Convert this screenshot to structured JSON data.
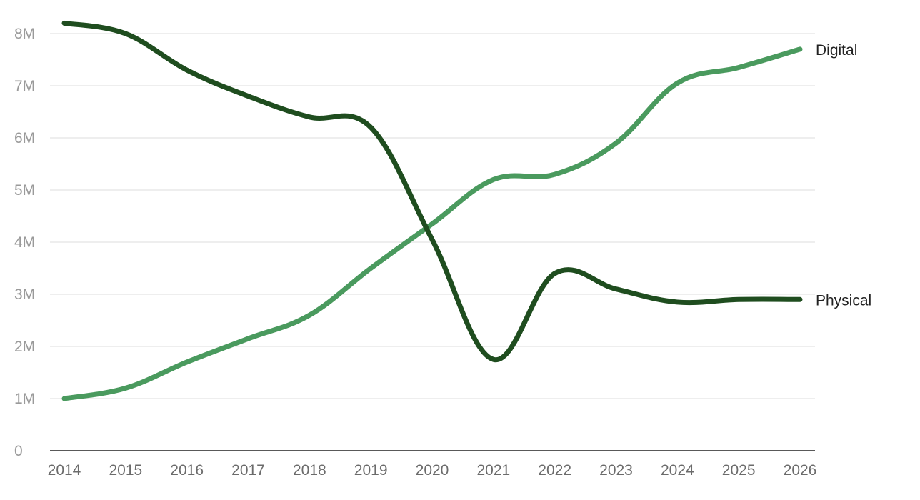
{
  "chart_data": {
    "type": "line",
    "title": "",
    "xlabel": "",
    "ylabel": "",
    "x": [
      2014,
      2015,
      2016,
      2017,
      2018,
      2019,
      2020,
      2021,
      2022,
      2023,
      2024,
      2025,
      2026
    ],
    "x_tick_labels": [
      "2014",
      "2015",
      "2016",
      "2017",
      "2018",
      "2019",
      "2020",
      "2021",
      "2022",
      "2023",
      "2024",
      "2025",
      "2026"
    ],
    "ylim": [
      0,
      8000000
    ],
    "y_ticks": [
      0,
      1000000,
      2000000,
      3000000,
      4000000,
      5000000,
      6000000,
      7000000,
      8000000
    ],
    "y_tick_labels": [
      "0",
      "1M",
      "2M",
      "3M",
      "4M",
      "5M",
      "6M",
      "7M",
      "8M"
    ],
    "grid": "horizontal",
    "legend": "direct labels at line ends (right)",
    "series": [
      {
        "name": "Digital",
        "color": "#4a9a5e",
        "values": [
          1000000,
          1200000,
          1700000,
          2150000,
          2600000,
          3500000,
          4350000,
          5200000,
          5300000,
          5900000,
          7050000,
          7350000,
          7700000
        ]
      },
      {
        "name": "Physical",
        "color": "#1f4d1f",
        "values": [
          8200000,
          8000000,
          7300000,
          6800000,
          6400000,
          6200000,
          4050000,
          1750000,
          3400000,
          3100000,
          2850000,
          2900000,
          2900000
        ]
      }
    ]
  }
}
